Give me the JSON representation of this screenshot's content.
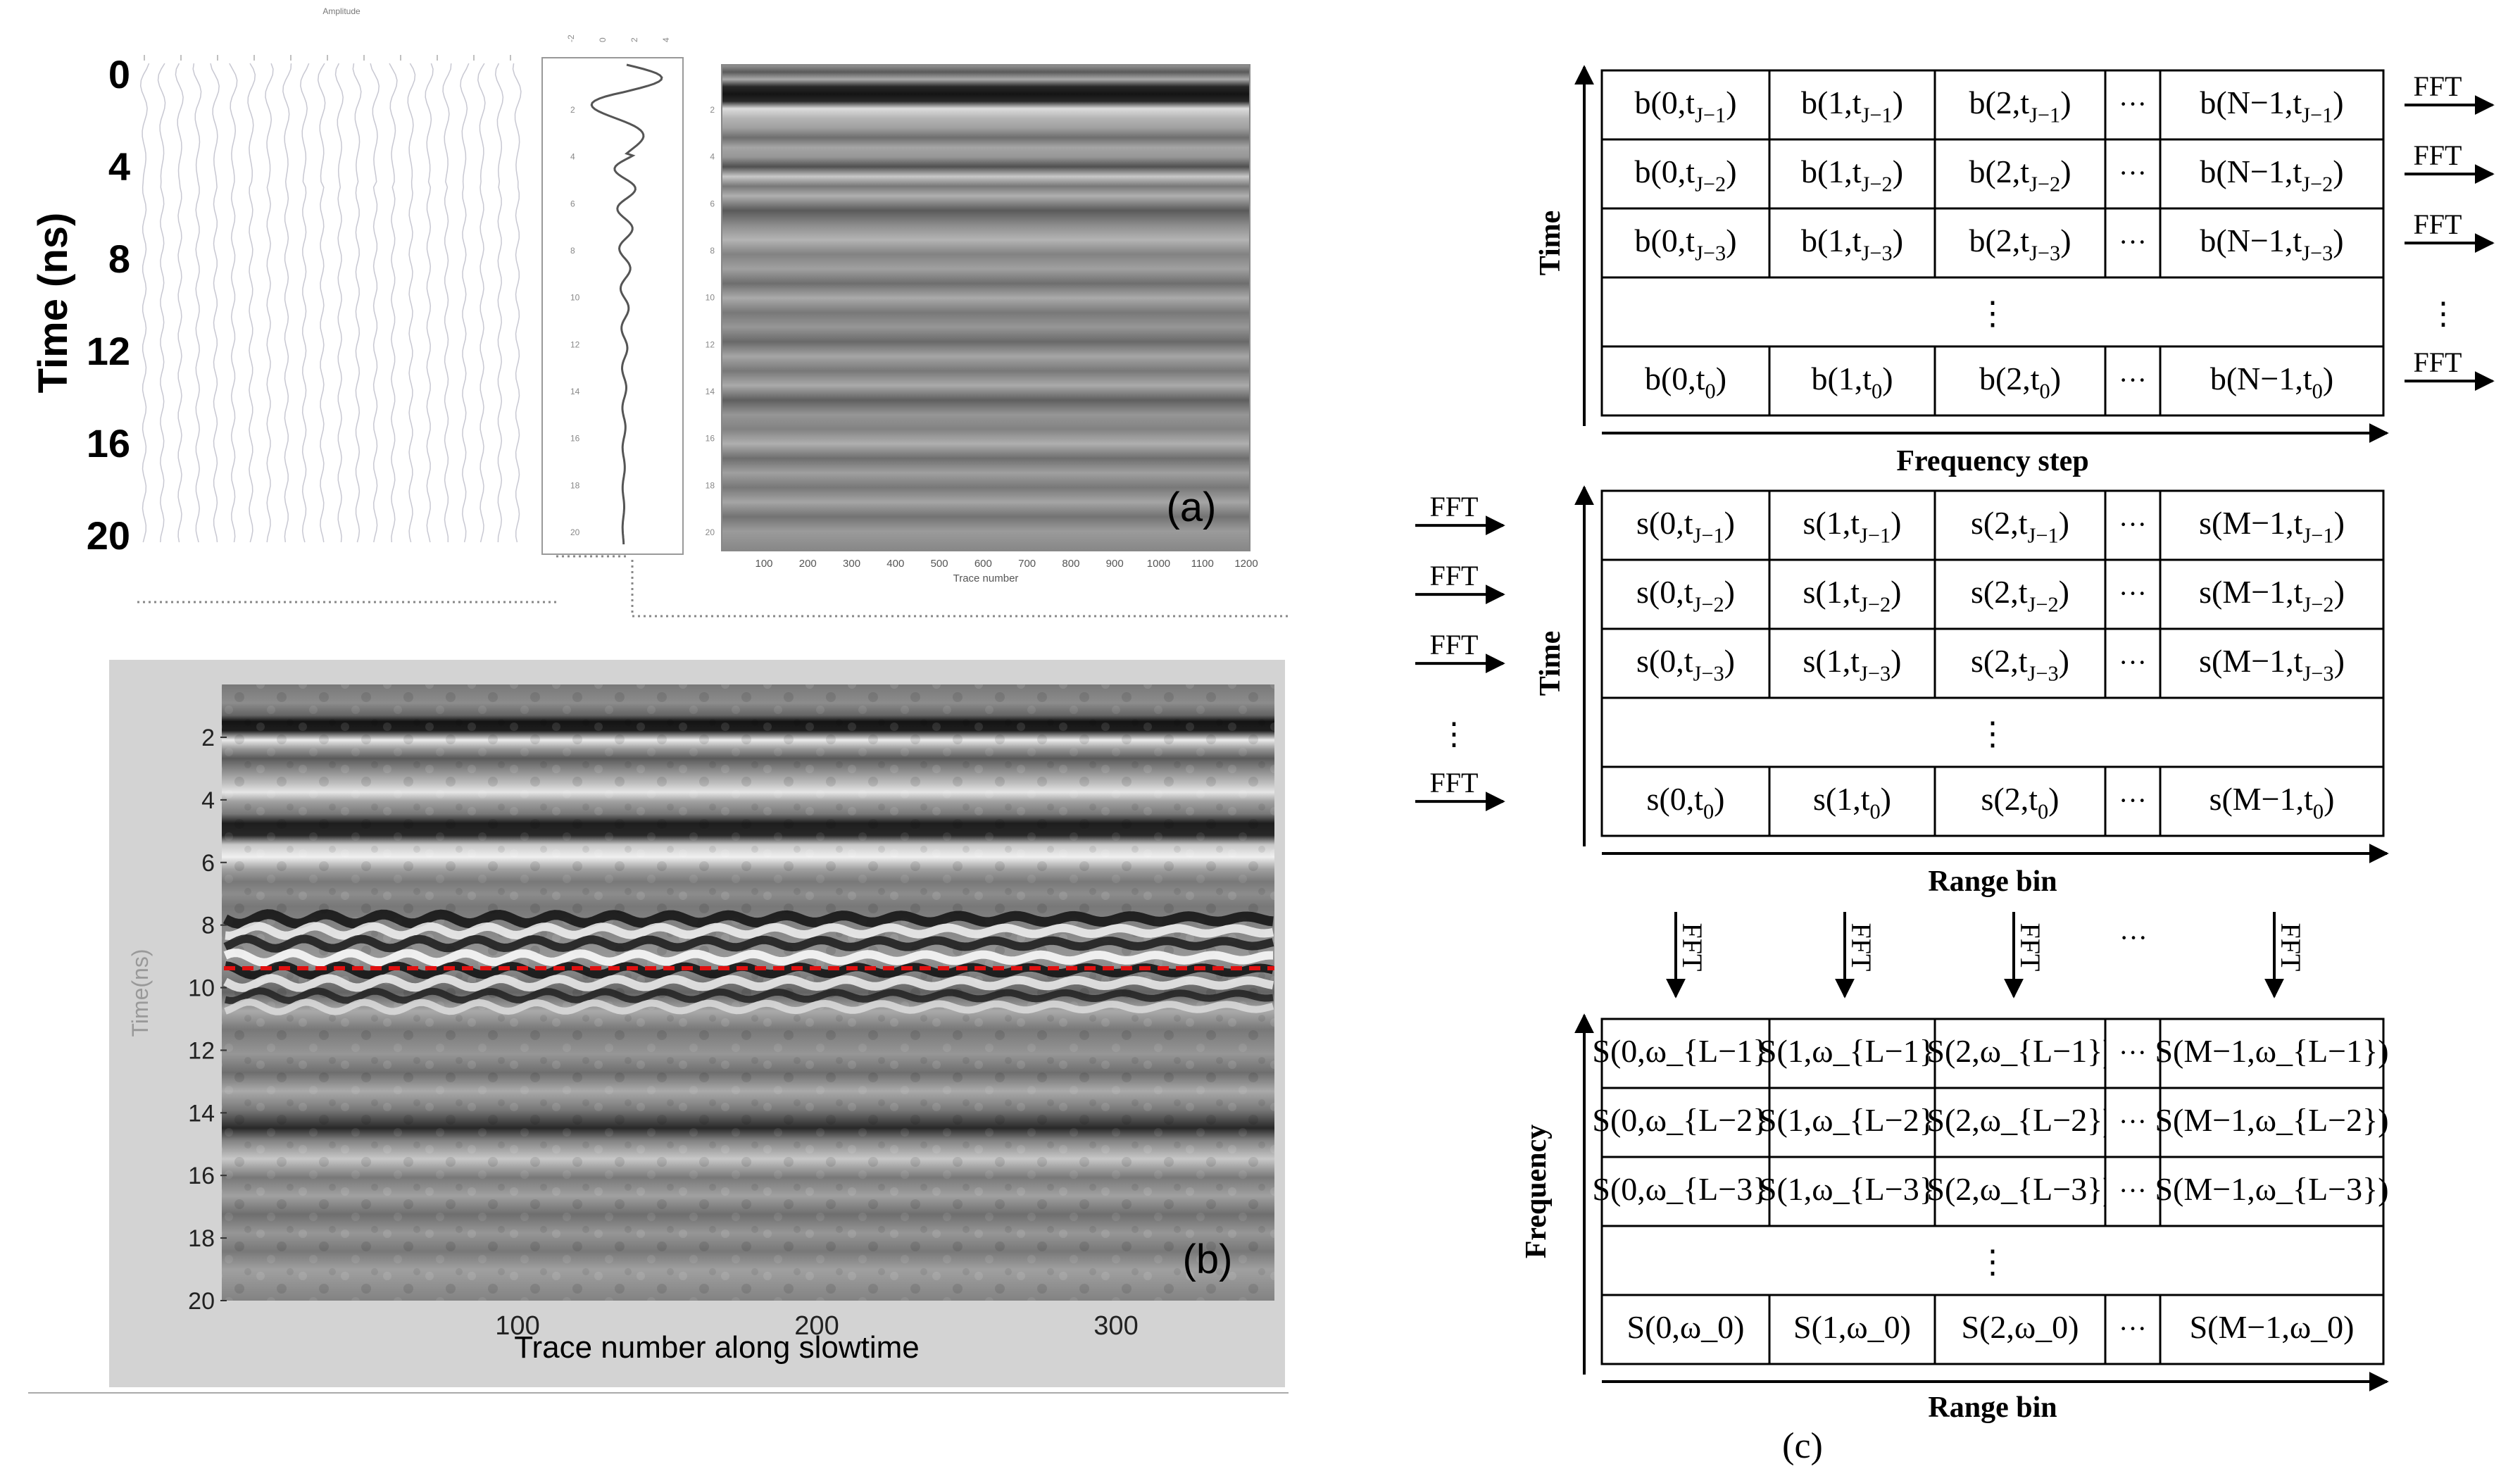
{
  "panel_a": {
    "label": "(a)",
    "ylabel": "Time (ns)",
    "yticks": [
      "0",
      "4",
      "8",
      "12",
      "16",
      "20"
    ],
    "wiggle_top_label": "Amplitude",
    "trace_top_ticks": [
      "-2",
      "0",
      "2",
      "4"
    ],
    "trace_yticks": [
      "2",
      "4",
      "6",
      "8",
      "10",
      "12",
      "14",
      "16",
      "18",
      "20"
    ],
    "image_yticks": [
      "2",
      "4",
      "6",
      "8",
      "10",
      "12",
      "14",
      "16",
      "18",
      "20"
    ],
    "image_xticks": [
      "100",
      "200",
      "300",
      "400",
      "500",
      "600",
      "700",
      "800",
      "900",
      "1000",
      "1100",
      "1200"
    ],
    "image_xlabel": "Trace number"
  },
  "panel_b": {
    "label": "(b)",
    "ylabel": "Time(ns)",
    "yticks": [
      "2",
      "4",
      "6",
      "8",
      "10",
      "12",
      "14",
      "16",
      "18",
      "20"
    ],
    "xticks": [
      "100",
      "200",
      "300"
    ],
    "xlabel": "Trace number along slowtime",
    "marker_color": "#e01010"
  },
  "panel_c": {
    "label": "(c)",
    "fft_label": "FFT",
    "dots_h": "···",
    "dots_v": "⋮",
    "grid1": {
      "ylabel": "Time",
      "xlabel": "Frequency step",
      "rows": [
        [
          "b(0,t_{J−1})",
          "b(1,t_{J−1})",
          "b(2,t_{J−1})",
          "···",
          "b(N−1,t_{J−1})"
        ],
        [
          "b(0,t_{J−2})",
          "b(1,t_{J−2})",
          "b(2,t_{J−2})",
          "···",
          "b(N−1,t_{J−2})"
        ],
        [
          "b(0,t_{J−3})",
          "b(1,t_{J−3})",
          "b(2,t_{J−3})",
          "···",
          "b(N−1,t_{J−3})"
        ],
        [
          "⋮"
        ],
        [
          "b(0,t_0)",
          "b(1,t_0)",
          "b(2,t_0)",
          "···",
          "b(N−1,t_0)"
        ]
      ]
    },
    "grid2": {
      "ylabel": "Time",
      "xlabel": "Range bin",
      "rows": [
        [
          "s(0,t_{J−1})",
          "s(1,t_{J−1})",
          "s(2,t_{J−1})",
          "···",
          "s(M−1,t_{J−1})"
        ],
        [
          "s(0,t_{J−2})",
          "s(1,t_{J−2})",
          "s(2,t_{J−2})",
          "···",
          "s(M−1,t_{J−2})"
        ],
        [
          "s(0,t_{J−3})",
          "s(1,t_{J−3})",
          "s(2,t_{J−3})",
          "···",
          "s(M−1,t_{J−3})"
        ],
        [
          "⋮"
        ],
        [
          "s(0,t_0)",
          "s(1,t_0)",
          "s(2,t_0)",
          "···",
          "s(M−1,t_0)"
        ]
      ]
    },
    "grid3": {
      "ylabel": "Frequency",
      "xlabel": "Range bin",
      "rows": [
        [
          "S(0,ω_{L−1})",
          "S(1,ω_{L−1})",
          "S(2,ω_{L−1})",
          "···",
          "S(M−1,ω_{L−1})"
        ],
        [
          "S(0,ω_{L−2})",
          "S(1,ω_{L−2})",
          "S(2,ω_{L−2})",
          "···",
          "S(M−1,ω_{L−2})"
        ],
        [
          "S(0,ω_{L−3})",
          "S(1,ω_{L−3})",
          "S(2,ω_{L−3})",
          "···",
          "S(M−1,ω_{L−3})"
        ],
        [
          "⋮"
        ],
        [
          "S(0,ω_0)",
          "S(1,ω_0)",
          "S(2,ω_0)",
          "···",
          "S(M−1,ω_0)"
        ]
      ]
    }
  }
}
